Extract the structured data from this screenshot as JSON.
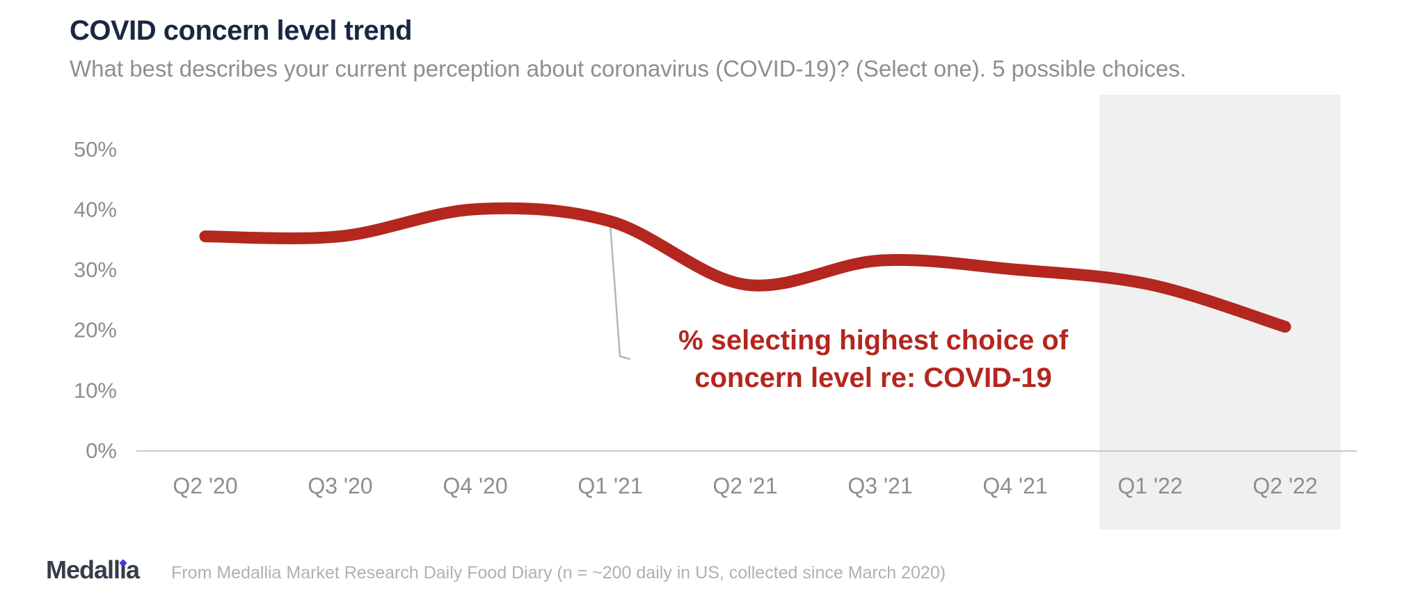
{
  "header": {
    "title": "COVID concern level trend",
    "subtitle": "What best describes your current perception about coronavirus (COVID-19)? (Select one).  5 possible choices."
  },
  "chart_data": {
    "type": "line",
    "title": "COVID concern level trend",
    "categories": [
      "Q2 '20",
      "Q3 '20",
      "Q4 '20",
      "Q1 '21",
      "Q2 '21",
      "Q3 '21",
      "Q4 '21",
      "Q1 '22",
      "Q2 '22"
    ],
    "series": [
      {
        "name": "% selecting highest choice of concern level re: COVID-19",
        "values": [
          35.5,
          35.5,
          40,
          38,
          27.5,
          31.5,
          30,
          27.5,
          20.5
        ],
        "color": "#b3271e"
      }
    ],
    "unit": "%",
    "xlabel": "",
    "ylabel": "",
    "ylim": [
      0,
      55
    ],
    "yticks": [
      0,
      10,
      20,
      30,
      40,
      50
    ],
    "grid": false,
    "legend": "none",
    "annotation": {
      "line1": "% selecting highest choice of",
      "line2": "concern level re: COVID-19",
      "attach_category": "Q1 '21",
      "color": "#b3271e"
    },
    "highlight_band": {
      "from": "Q1 '22",
      "to": "Q2 '22",
      "color": "#f0f0f0"
    }
  },
  "footer": {
    "brand": "Medallia",
    "logo_parts": [
      "Medall",
      "ı",
      "a"
    ],
    "note": "From Medallia Market Research Daily Food Diary (n = ~200 daily in US, collected since March 2020)"
  },
  "colors": {
    "title_navy": "#1a2744",
    "subtitle_gray": "#8e8e8e",
    "axis_gray": "#8d8d8d",
    "line_red": "#b3271e",
    "band_gray": "#f0f0f0",
    "axis_line_gray": "#c9c9c9",
    "leader_gray": "#b5b5b5",
    "logo_dark": "#363d49",
    "logo_dot_blue": "#4438d8"
  }
}
